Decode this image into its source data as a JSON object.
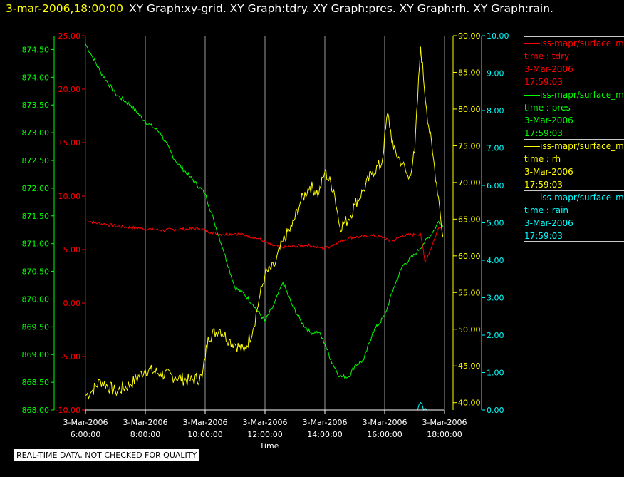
{
  "header": {
    "timestamp": "3-mar-2006,18:00:00",
    "graphs": "XY Graph:xy-grid.  XY Graph:tdry.  XY Graph:pres.  XY Graph:rh.  XY Graph:rain."
  },
  "legend": [
    {
      "line1": "iss-mapr/surface_m",
      "line2": "time : tdry",
      "line3": "3-Mar-2006",
      "line4": "17:59:03",
      "color": "#ff0000"
    },
    {
      "line1": "iss-mapr/surface_m",
      "line2": "time : pres",
      "line3": "3-Mar-2006",
      "line4": "17:59:03",
      "color": "#00ff00"
    },
    {
      "line1": "iss-mapr/surface_m",
      "line2": "time : rh",
      "line3": "3-Mar-2006",
      "line4": "17:59:03",
      "color": "#ffff00"
    },
    {
      "line1": "iss-mapr/surface_m",
      "line2": "time : rain",
      "line3": "3-Mar-2006",
      "line4": "17:59:03",
      "color": "#00ffff"
    }
  ],
  "disclaimer": "REAL-TIME DATA, NOT CHECKED FOR QUALITY",
  "chart_data": {
    "type": "line",
    "xlabel": "Time",
    "x_ticks": [
      {
        "hour": 6,
        "date": "3-Mar-2006",
        "time": "6:00:00"
      },
      {
        "hour": 8,
        "date": "3-Mar-2006",
        "time": "8:00:00"
      },
      {
        "hour": 10,
        "date": "3-Mar-2006",
        "time": "10:00:00"
      },
      {
        "hour": 12,
        "date": "3-Mar-2006",
        "time": "12:00:00"
      },
      {
        "hour": 14,
        "date": "3-Mar-2006",
        "time": "14:00:00"
      },
      {
        "hour": 16,
        "date": "3-Mar-2006",
        "time": "16:00:00"
      },
      {
        "hour": 18,
        "date": "3-Mar-2006",
        "time": "18:00:00"
      }
    ],
    "x_range": [
      6,
      18
    ],
    "grid": "vertical",
    "axes": {
      "pres": {
        "color": "#00ff00",
        "range": [
          868.0,
          874.75
        ],
        "ticks": [
          "868.00",
          "868.50",
          "869.00",
          "869.50",
          "870.00",
          "870.50",
          "871.00",
          "871.50",
          "872.00",
          "872.50",
          "873.00",
          "873.50",
          "874.00",
          "874.50"
        ]
      },
      "tdry": {
        "color": "#ff0000",
        "range": [
          -10,
          25
        ],
        "ticks": [
          "-10.00",
          "-5.00",
          "0.00",
          "5.00",
          "10.00",
          "15.00",
          "20.00",
          "25.00"
        ]
      },
      "rh": {
        "color": "#ffff00",
        "range": [
          39,
          90
        ],
        "ticks": [
          "40.00",
          "45.00",
          "50.00",
          "55.00",
          "60.00",
          "65.00",
          "70.00",
          "75.00",
          "80.00",
          "85.00",
          "90.00"
        ]
      },
      "rain": {
        "color": "#00ffff",
        "range": [
          0,
          10.0
        ],
        "ticks": [
          "0.00",
          "1.00",
          "2.00",
          "3.00",
          "4.00",
          "5.00",
          "6.00",
          "7.00",
          "8.00",
          "9.00",
          "10.00"
        ]
      }
    },
    "series": [
      {
        "name": "tdry",
        "axis": "tdry",
        "color": "#ff0000",
        "x": [
          6.0,
          6.3,
          6.6,
          7.0,
          7.4,
          7.8,
          8.2,
          8.6,
          9.0,
          9.4,
          9.8,
          10.2,
          10.6,
          11.0,
          11.4,
          11.8,
          12.2,
          12.6,
          13.0,
          13.4,
          13.8,
          14.0,
          14.4,
          14.8,
          15.2,
          15.6,
          16.0,
          16.2,
          16.6,
          17.0,
          17.2,
          17.35,
          17.6,
          17.8,
          17.95
        ],
        "y": [
          7.8,
          7.5,
          7.4,
          7.2,
          7.1,
          7.0,
          6.9,
          6.8,
          6.9,
          6.9,
          7.0,
          6.6,
          6.4,
          6.5,
          6.3,
          6.0,
          5.4,
          5.2,
          5.3,
          5.4,
          5.2,
          5.1,
          5.6,
          6.1,
          6.2,
          6.3,
          6.1,
          5.7,
          6.3,
          6.4,
          6.5,
          3.8,
          5.5,
          7.0,
          7.3
        ]
      },
      {
        "name": "pres",
        "axis": "pres",
        "color": "#00ff00",
        "x": [
          6.0,
          6.2,
          6.5,
          7.0,
          7.5,
          8.0,
          8.5,
          9.0,
          9.5,
          10.0,
          10.3,
          10.6,
          11.0,
          11.3,
          11.6,
          12.0,
          12.3,
          12.6,
          12.9,
          13.2,
          13.5,
          13.8,
          14.0,
          14.2,
          14.5,
          14.8,
          15.0,
          15.3,
          15.6,
          16.0,
          16.3,
          16.6,
          17.0,
          17.3,
          17.6,
          17.8,
          17.95
        ],
        "y": [
          874.6,
          874.4,
          874.1,
          873.7,
          873.5,
          873.2,
          873.0,
          872.5,
          872.2,
          871.9,
          871.4,
          870.9,
          870.2,
          870.1,
          869.9,
          869.6,
          869.9,
          870.3,
          869.9,
          869.6,
          869.4,
          869.4,
          869.2,
          868.9,
          868.6,
          868.6,
          868.8,
          868.9,
          869.4,
          869.7,
          870.2,
          870.6,
          870.8,
          871.0,
          871.2,
          871.4,
          871.3
        ]
      },
      {
        "name": "rh",
        "axis": "rh",
        "color": "#ffff00",
        "x": [
          6.0,
          6.2,
          6.5,
          7.0,
          7.5,
          8.0,
          8.5,
          9.0,
          9.5,
          9.9,
          10.1,
          10.5,
          10.8,
          11.0,
          11.3,
          11.6,
          11.8,
          12.0,
          12.3,
          12.6,
          12.9,
          13.2,
          13.5,
          13.8,
          14.0,
          14.3,
          14.5,
          14.8,
          15.0,
          15.3,
          15.6,
          15.9,
          16.1,
          16.3,
          16.6,
          16.8,
          17.0,
          17.2,
          17.4,
          17.6,
          17.8,
          17.95
        ],
        "y": [
          41.0,
          41.5,
          43.0,
          41.5,
          42.5,
          44.5,
          44.0,
          43.5,
          43.0,
          43.5,
          49.0,
          50.0,
          48.5,
          48.0,
          47.0,
          50.0,
          54.0,
          57.5,
          58.5,
          62.0,
          64.0,
          67.5,
          69.5,
          68.5,
          71.5,
          69.0,
          64.0,
          65.0,
          67.0,
          69.0,
          71.5,
          72.5,
          79.5,
          74.5,
          72.5,
          70.5,
          74.0,
          88.5,
          80.0,
          74.0,
          68.0,
          62.5
        ]
      },
      {
        "name": "rain",
        "axis": "rain",
        "color": "#00ffff",
        "x": [
          6.0,
          17.0,
          17.1,
          17.15,
          17.2,
          17.25,
          17.3,
          17.35,
          17.4,
          17.95
        ],
        "y": [
          0.0,
          0.0,
          0.0,
          0.15,
          0.2,
          0.15,
          0.0,
          0.05,
          0.0,
          0.0
        ]
      }
    ]
  }
}
